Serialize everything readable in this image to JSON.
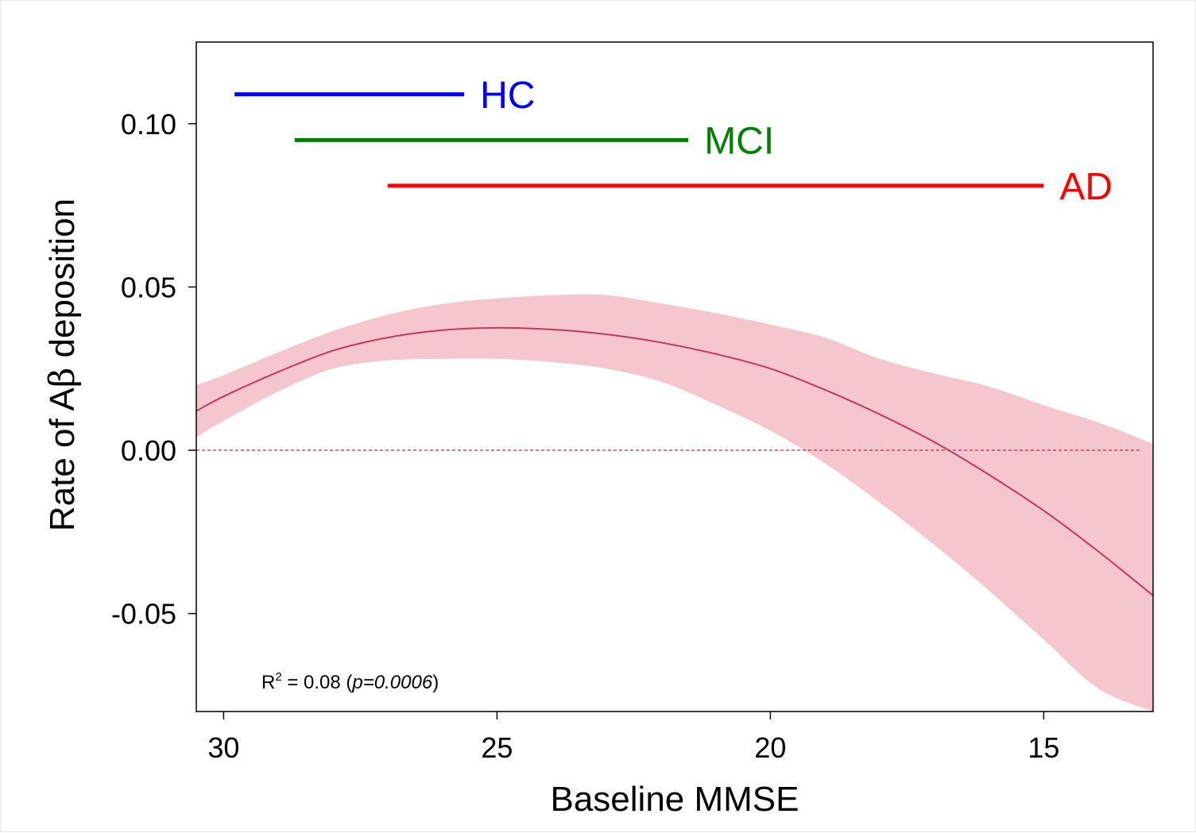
{
  "chart_data": {
    "type": "line",
    "xlabel": "Baseline MMSE",
    "ylabel_prefix": "Rate of A",
    "ylabel_greek": "β",
    "ylabel_suffix": " deposition",
    "xlim": [
      30.5,
      13.0
    ],
    "ylim": [
      -0.08,
      0.125
    ],
    "x_reversed": true,
    "x_ticks": [
      30,
      25,
      20,
      15
    ],
    "x_tick_labels": [
      "30",
      "25",
      "20",
      "15"
    ],
    "y_ticks": [
      0.1,
      0.05,
      0.0,
      -0.05
    ],
    "y_tick_labels": [
      "0.10",
      "0.05",
      "0.00",
      "-0.05"
    ],
    "reference_line": {
      "y": 0.0,
      "style": "dashed",
      "color": "#b03040"
    },
    "fit": {
      "x": [
        30.5,
        30,
        29,
        28,
        27,
        26,
        25,
        24,
        23,
        22,
        21,
        20,
        19,
        18,
        17,
        16,
        15,
        14,
        13
      ],
      "y": [
        0.012,
        0.0165,
        0.024,
        0.0305,
        0.0345,
        0.0368,
        0.0375,
        0.037,
        0.0355,
        0.033,
        0.0295,
        0.025,
        0.0185,
        0.011,
        0.0025,
        -0.0075,
        -0.0185,
        -0.031,
        -0.0445
      ],
      "lower": [
        0.004,
        0.009,
        0.018,
        0.025,
        0.0275,
        0.028,
        0.028,
        0.027,
        0.025,
        0.021,
        0.014,
        0.006,
        -0.004,
        -0.016,
        -0.029,
        -0.043,
        -0.058,
        -0.073,
        -0.08
      ],
      "upper": [
        0.02,
        0.023,
        0.03,
        0.0365,
        0.0415,
        0.0448,
        0.0465,
        0.0475,
        0.0475,
        0.045,
        0.042,
        0.0385,
        0.0345,
        0.028,
        0.0235,
        0.0195,
        0.0138,
        0.0085,
        0.002
      ],
      "line_color": "#c8375a",
      "band_color": "#f6c6cf"
    },
    "ranges": [
      {
        "label": "HC",
        "x_start": 29.8,
        "x_end": 25.6,
        "y": 0.109,
        "color": "#0000ff"
      },
      {
        "label": "MCI",
        "x_start": 28.7,
        "x_end": 21.5,
        "y": 0.095,
        "color": "#008000"
      },
      {
        "label": "AD",
        "x_start": 27.0,
        "x_end": 15.0,
        "y": 0.081,
        "color": "#ff0000"
      }
    ],
    "annotation": {
      "r_label": "R",
      "r_superscript": "2",
      "text_before": " = 0.08 (",
      "text_italic": "p=0.0006",
      "text_after": ")"
    },
    "grid": false,
    "legend": "none"
  }
}
